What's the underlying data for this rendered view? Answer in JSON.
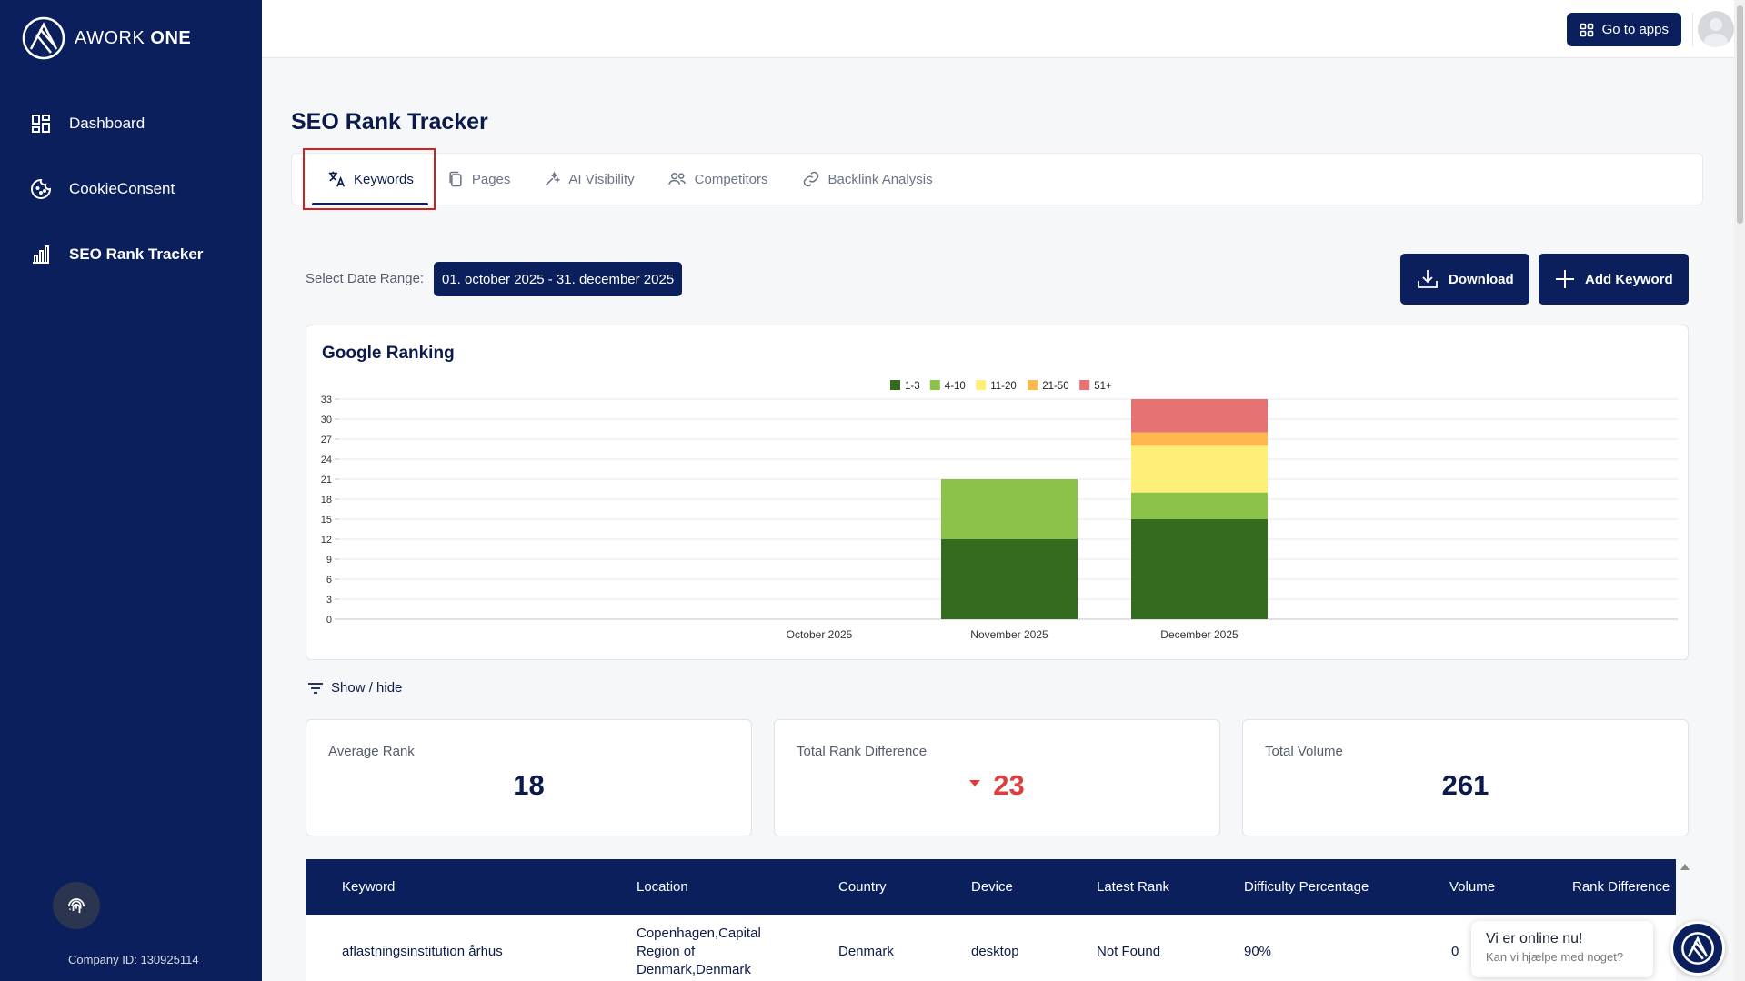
{
  "app": {
    "brand_light": "AWORK",
    "brand_bold": "ONE"
  },
  "sidebar": {
    "items": [
      {
        "label": "Dashboard",
        "icon": "dashboard-icon"
      },
      {
        "label": "CookieConsent",
        "icon": "cookie-icon"
      },
      {
        "label": "SEO Rank Tracker",
        "icon": "bar-chart-icon"
      }
    ],
    "company_id": "Company ID: 130925114"
  },
  "topbar": {
    "goto_label": "Go to apps"
  },
  "page": {
    "title": "SEO Rank Tracker"
  },
  "tabs": [
    {
      "label": "Keywords",
      "icon": "translate-icon",
      "active": true
    },
    {
      "label": "Pages",
      "icon": "pages-icon"
    },
    {
      "label": "AI Visibility",
      "icon": "sparkle-icon"
    },
    {
      "label": "Competitors",
      "icon": "users-icon"
    },
    {
      "label": "Backlink Analysis",
      "icon": "link-icon"
    }
  ],
  "filters": {
    "date_label": "Select Date Range:",
    "date_value": "01. october 2025 - 31. december 2025"
  },
  "actions": {
    "download_label": "Download",
    "add_label": "Add Keyword"
  },
  "chart": {
    "title": "Google Ranking"
  },
  "chart_data": {
    "type": "bar",
    "stacked": true,
    "categories": [
      "October 2025",
      "November 2025",
      "December 2025"
    ],
    "series": [
      {
        "name": "1-3",
        "color": "#346b1f",
        "values": [
          0,
          12,
          15
        ]
      },
      {
        "name": "4-10",
        "color": "#8bc34a",
        "values": [
          0,
          9,
          4
        ]
      },
      {
        "name": "11-20",
        "color": "#ffef78",
        "values": [
          0,
          0,
          7
        ]
      },
      {
        "name": "21-50",
        "color": "#ffb84d",
        "values": [
          0,
          0,
          2
        ]
      },
      {
        "name": "51+",
        "color": "#e57373",
        "values": [
          0,
          0,
          5
        ]
      }
    ],
    "ylim": [
      0,
      33
    ],
    "yticks": [
      0,
      3,
      6,
      9,
      12,
      15,
      18,
      21,
      24,
      27,
      30,
      33
    ],
    "legend": "top-center",
    "grid": true
  },
  "showhide_label": "Show / hide",
  "stats": [
    {
      "label": "Average Rank",
      "value": "18"
    },
    {
      "label": "Total Rank Difference",
      "value": "23"
    },
    {
      "label": "Total Volume",
      "value": "261"
    }
  ],
  "table": {
    "columns": [
      "Keyword",
      "Location",
      "Country",
      "Device",
      "Latest Rank",
      "Difficulty Percentage",
      "Volume",
      "Rank Difference"
    ],
    "rows": [
      {
        "keyword": "aflastningsinstitution århus",
        "location_lines": [
          "Copenhagen,Capital",
          "Region of",
          "Denmark,Denmark"
        ],
        "country": "Denmark",
        "device": "desktop",
        "latest_rank": "Not Found",
        "difficulty": "90%",
        "volume": "0"
      }
    ]
  },
  "chat": {
    "title": "Vi er online nu!",
    "subtitle": "Kan vi hjælpe med noget?"
  }
}
